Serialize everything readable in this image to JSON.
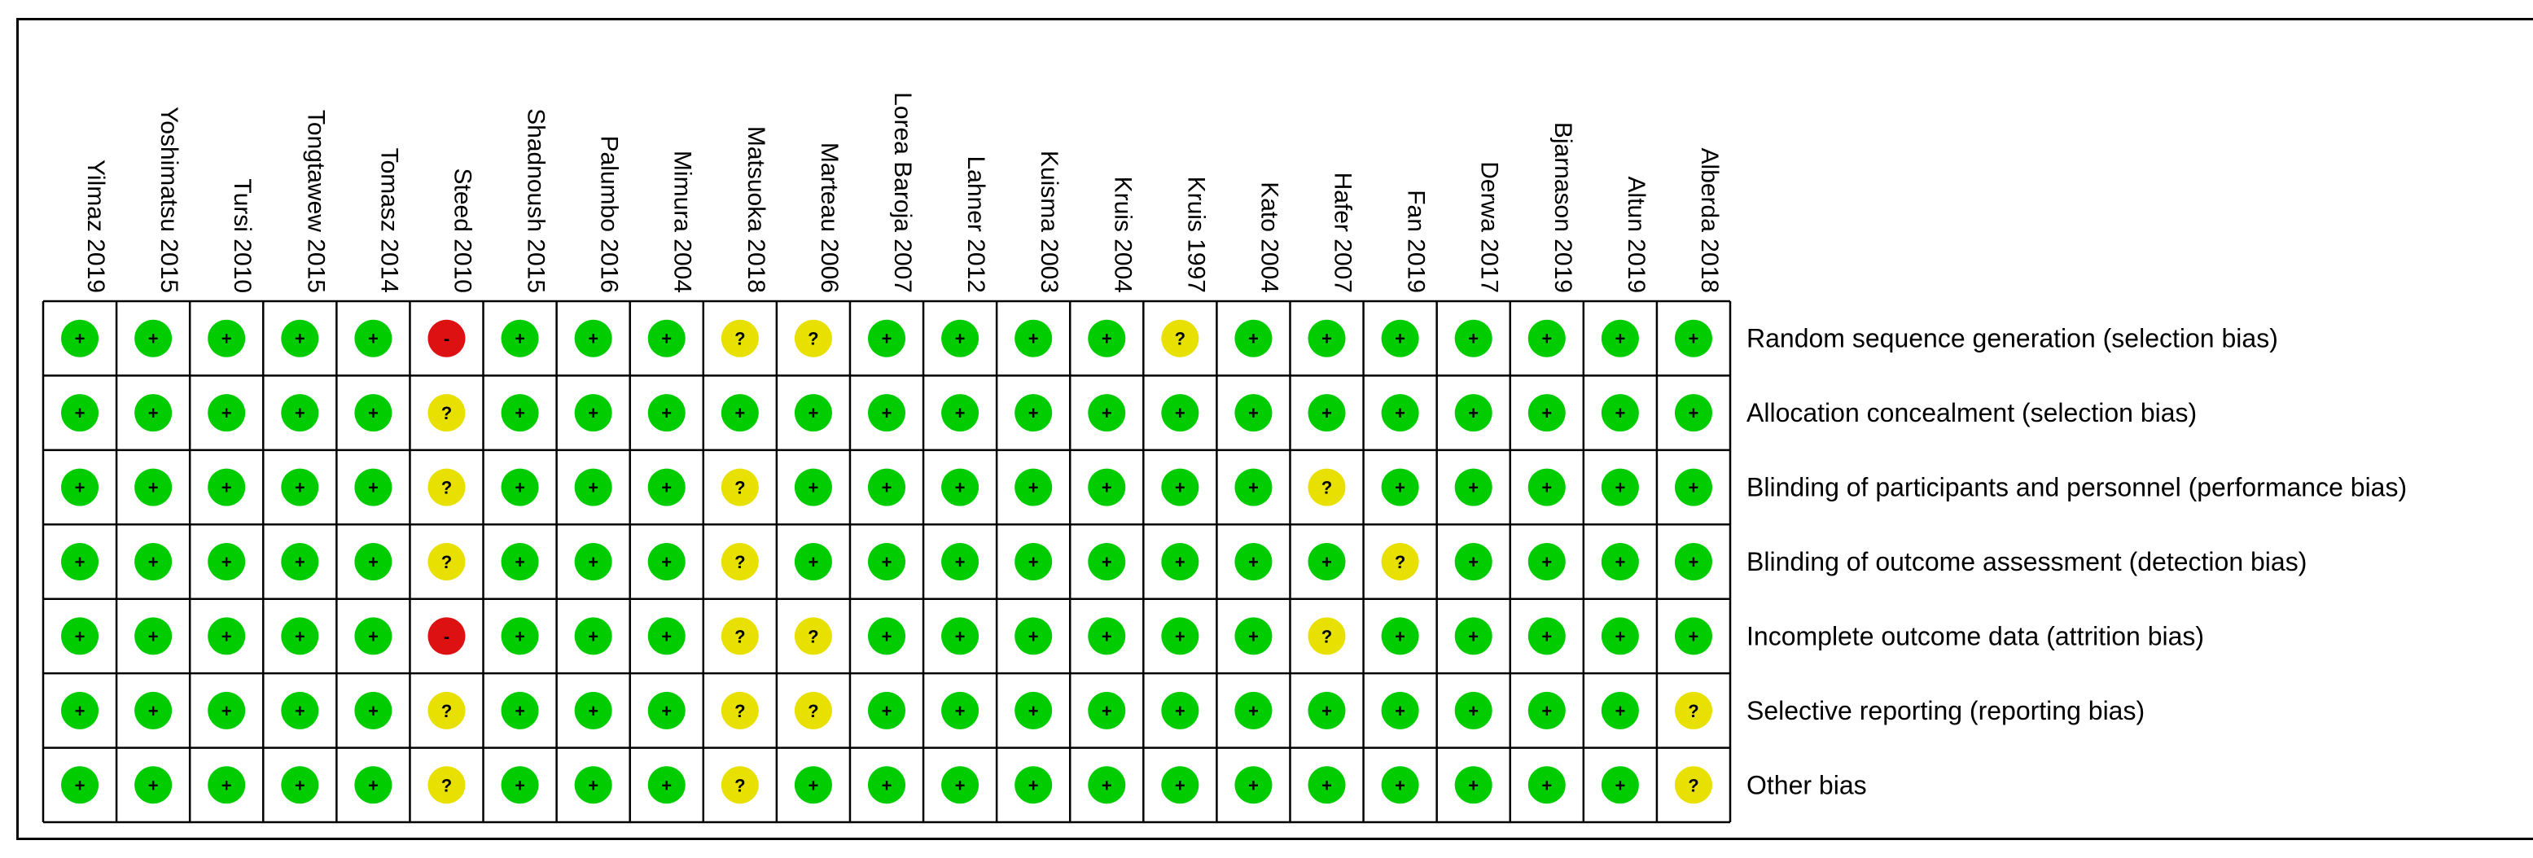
{
  "chart_data": {
    "type": "table",
    "title": "",
    "studies": [
      "Yilmaz 2019",
      "Yoshimatsu 2015",
      "Tursi 2010",
      "Tongtawew 2015",
      "Tomasz 2014",
      "Steed 2010",
      "Shadnoush 2015",
      "Palumbo 2016",
      "Mimura 2004",
      "Matsuoka 2018",
      "Marteau 2006",
      "Lorea Baroja 2007",
      "Lahner 2012",
      "Kuisma 2003",
      "Kruis 2004",
      "Kruis 1997",
      "Kato 2004",
      "Hafer 2007",
      "Fan 2019",
      "Derwa 2017",
      "Bjarnason 2019",
      "Altun 2019",
      "Alberda 2018"
    ],
    "domains": [
      "Random sequence generation (selection bias)",
      "Allocation concealment (selection bias)",
      "Blinding of participants and personnel (performance bias)",
      "Blinding of outcome assessment (detection bias)",
      "Incomplete outcome data (attrition bias)",
      "Selective reporting (reporting bias)",
      "Other bias"
    ],
    "ratings": [
      [
        "+",
        "+",
        "+",
        "+",
        "+",
        "-",
        "+",
        "+",
        "+",
        "?",
        "?",
        "+",
        "+",
        "+",
        "+",
        "?",
        "+",
        "+",
        "+",
        "+",
        "+",
        "+",
        "+"
      ],
      [
        "+",
        "+",
        "+",
        "+",
        "+",
        "?",
        "+",
        "+",
        "+",
        "+",
        "+",
        "+",
        "+",
        "+",
        "+",
        "+",
        "+",
        "+",
        "+",
        "+",
        "+",
        "+",
        "+"
      ],
      [
        "+",
        "+",
        "+",
        "+",
        "+",
        "?",
        "+",
        "+",
        "+",
        "?",
        "+",
        "+",
        "+",
        "+",
        "+",
        "+",
        "+",
        "?",
        "+",
        "+",
        "+",
        "+",
        "+"
      ],
      [
        "+",
        "+",
        "+",
        "+",
        "+",
        "?",
        "+",
        "+",
        "+",
        "?",
        "+",
        "+",
        "+",
        "+",
        "+",
        "+",
        "+",
        "+",
        "?",
        "+",
        "+",
        "+",
        "+"
      ],
      [
        "+",
        "+",
        "+",
        "+",
        "+",
        "-",
        "+",
        "+",
        "+",
        "?",
        "?",
        "+",
        "+",
        "+",
        "+",
        "+",
        "+",
        "?",
        "+",
        "+",
        "+",
        "+",
        "+"
      ],
      [
        "+",
        "+",
        "+",
        "+",
        "+",
        "?",
        "+",
        "+",
        "+",
        "?",
        "?",
        "+",
        "+",
        "+",
        "+",
        "+",
        "+",
        "+",
        "+",
        "+",
        "+",
        "+",
        "?"
      ],
      [
        "+",
        "+",
        "+",
        "+",
        "+",
        "?",
        "+",
        "+",
        "+",
        "?",
        "+",
        "+",
        "+",
        "+",
        "+",
        "+",
        "+",
        "+",
        "+",
        "+",
        "+",
        "+",
        "?"
      ]
    ],
    "legend": {
      "low_risk": {
        "symbol": "+",
        "color": "#00cc00"
      },
      "unclear_risk": {
        "symbol": "?",
        "color": "#e8e000"
      },
      "high_risk": {
        "symbol": "-",
        "color": "#dd1111"
      }
    }
  }
}
